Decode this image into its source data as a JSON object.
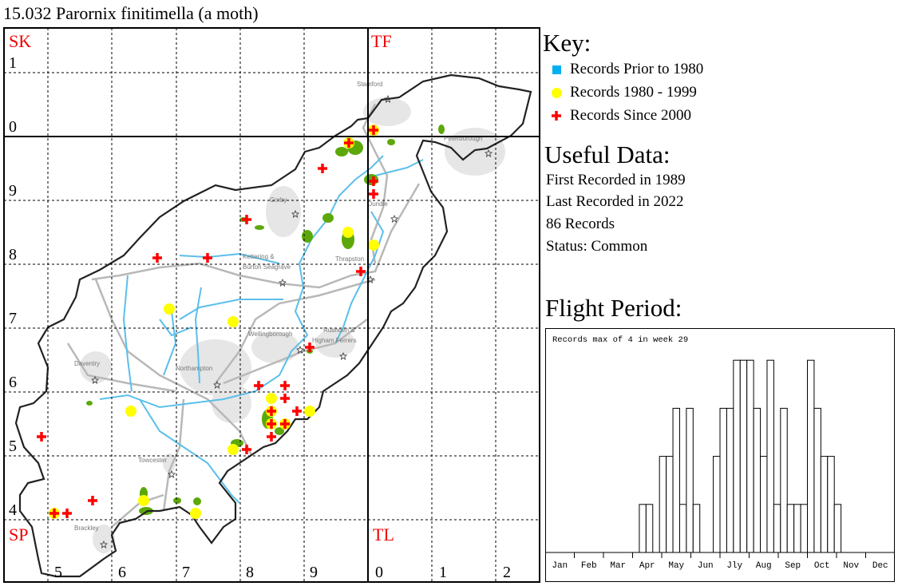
{
  "title": "15.032 Parornix finitimella (a moth)",
  "map": {
    "squares": {
      "nw": "SK",
      "ne": "TF",
      "sw": "SP",
      "se": "TL"
    },
    "row_labels": [
      "1",
      "0",
      "9",
      "8",
      "7",
      "6",
      "5",
      "4"
    ],
    "col_labels": [
      "5",
      "6",
      "7",
      "8",
      "9",
      "0",
      "1",
      "2"
    ],
    "towns": [
      "Stamford",
      "Peterborough",
      "Corby",
      "Oundle",
      "Kettering &",
      "Burton Seagrave",
      "Thrapston",
      "Wellingborough",
      "Rushden &",
      "Higham Ferrers",
      "Daventry",
      "Northampton",
      "Towcester",
      "Brackley"
    ],
    "colors": {
      "prior_1980": "#00b0f0",
      "1980_1999": "#ffff00",
      "since_2000": "#ff0000",
      "grid_square_label": "#ff0000",
      "river": "#5bbfea",
      "road": "#b8b8b8",
      "woodland": "#5ca80a",
      "urban": "#e6e6e6"
    }
  },
  "key": {
    "title": "Key:",
    "items": [
      {
        "label": "Records Prior to 1980",
        "icon": "blue-square"
      },
      {
        "label": "Records 1980 - 1999",
        "icon": "yellow-circle"
      },
      {
        "label": "Records Since 2000",
        "icon": "red-cross"
      }
    ]
  },
  "useful_data": {
    "title": "Useful Data:",
    "lines": [
      "First Recorded in 1989",
      "Last Recorded in 2022",
      "86 Records",
      "Status: Common"
    ]
  },
  "flight_period": {
    "title": "Flight Period:"
  },
  "chart_data": {
    "type": "bar",
    "title": "Records max of 4 in week 29",
    "xlabel": "",
    "ylabel": "",
    "x_unit": "week",
    "weeks": [
      1,
      2,
      3,
      4,
      5,
      6,
      7,
      8,
      9,
      10,
      11,
      12,
      13,
      14,
      15,
      16,
      17,
      18,
      19,
      20,
      21,
      22,
      23,
      24,
      25,
      26,
      27,
      28,
      29,
      30,
      31,
      32,
      33,
      34,
      35,
      36,
      37,
      38,
      39,
      40,
      41,
      42,
      43,
      44,
      45,
      46,
      47,
      48,
      49,
      50,
      51,
      52
    ],
    "values": [
      0,
      0,
      0,
      0,
      0,
      0,
      0,
      0,
      0,
      0,
      0,
      0,
      0,
      0,
      1,
      1,
      0,
      2,
      2,
      3,
      1,
      3,
      1,
      0,
      0,
      2,
      3,
      3,
      4,
      4,
      4,
      3,
      2,
      4,
      1,
      3,
      1,
      1,
      1,
      4,
      3,
      2,
      2,
      1,
      0,
      0,
      0,
      0,
      0,
      0,
      0,
      0
    ],
    "month_labels": [
      "Jan",
      "Feb",
      "Mar",
      "Apr",
      "May",
      "Jun",
      "Jly",
      "Aug",
      "Sep",
      "Oct",
      "Nov",
      "Dec"
    ],
    "ylim": [
      0,
      4
    ],
    "grid": false
  }
}
